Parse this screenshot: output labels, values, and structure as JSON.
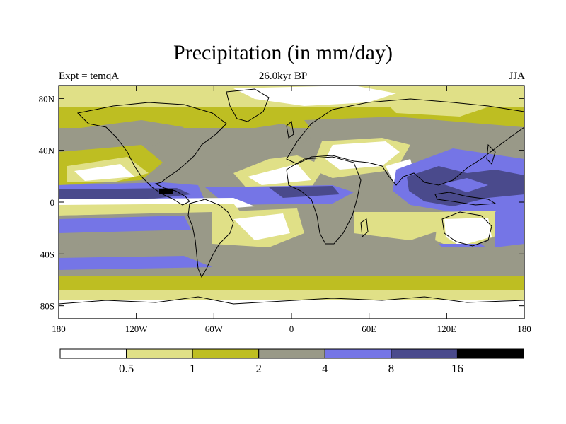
{
  "title": "Precipitation (in mm/day)",
  "subtitle_left": "Expt = temqA",
  "subtitle_center": "26.0kyr BP",
  "subtitle_right": "JJA",
  "map": {
    "projection": "cylindrical-equidistant",
    "lon_range": [
      -180,
      180
    ],
    "lat_range": [
      -90,
      90
    ],
    "lon_ticks": [
      {
        "value": -180,
        "label": "180"
      },
      {
        "value": -120,
        "label": "120W"
      },
      {
        "value": -60,
        "label": "60W"
      },
      {
        "value": 0,
        "label": "0"
      },
      {
        "value": 60,
        "label": "60E"
      },
      {
        "value": 120,
        "label": "120E"
      },
      {
        "value": 180,
        "label": "180"
      }
    ],
    "lat_ticks": [
      {
        "value": 80,
        "label": "80N"
      },
      {
        "value": 40,
        "label": "40N"
      },
      {
        "value": 0,
        "label": "0"
      },
      {
        "value": -40,
        "label": "40S"
      },
      {
        "value": -80,
        "label": "80S"
      }
    ]
  },
  "colorbar": {
    "colors": [
      "#ffffff",
      "#e0e087",
      "#bebe22",
      "#999988",
      "#7575e6",
      "#4a4a8c",
      "#000000"
    ],
    "levels": [
      {
        "value": 0.5,
        "label": "0.5"
      },
      {
        "value": 1,
        "label": "1"
      },
      {
        "value": 2,
        "label": "2"
      },
      {
        "value": 4,
        "label": "4"
      },
      {
        "value": 8,
        "label": "8"
      },
      {
        "value": 16,
        "label": "16"
      }
    ]
  }
}
